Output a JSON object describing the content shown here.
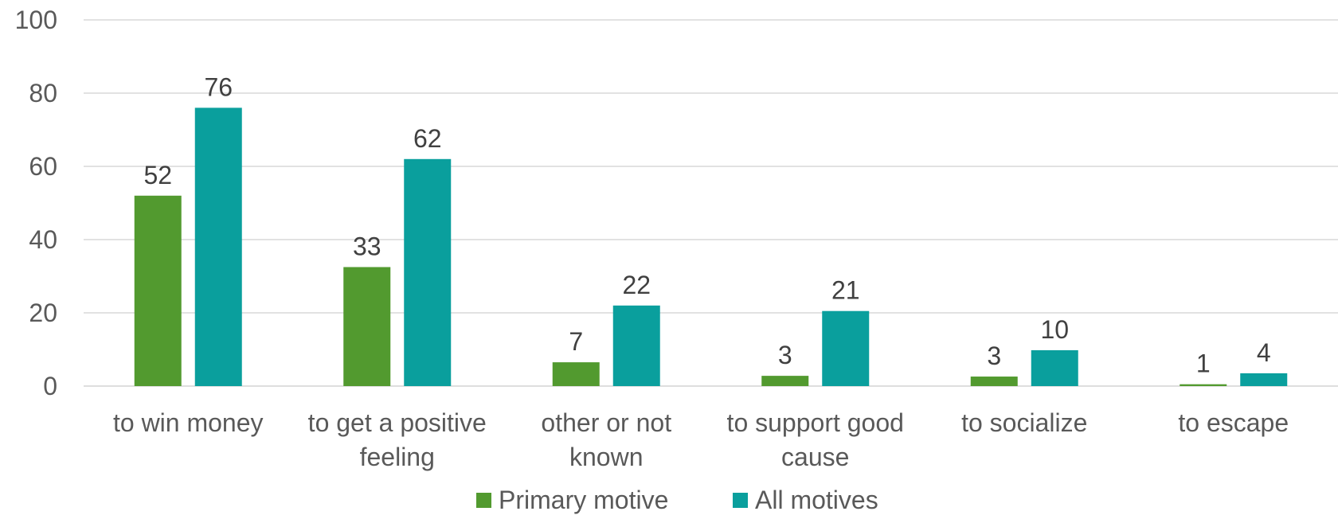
{
  "chart_data": {
    "type": "bar",
    "categories": [
      [
        "to win money"
      ],
      [
        "to get a positive",
        "feeling"
      ],
      [
        "other or not",
        "known"
      ],
      [
        "to support good",
        "cause"
      ],
      [
        "to socialize"
      ],
      [
        "to escape"
      ]
    ],
    "series": [
      {
        "name": "Primary motive",
        "color": "#529a2f",
        "values": [
          52,
          32.5,
          6.5,
          2.8,
          2.6,
          0.5
        ],
        "labels": [
          "52",
          "33",
          "7",
          "3",
          "3",
          "1"
        ]
      },
      {
        "name": "All motives",
        "color": "#0a9f9d",
        "values": [
          76,
          62,
          22,
          20.5,
          9.8,
          3.5
        ],
        "labels": [
          "76",
          "62",
          "22",
          "21",
          "10",
          "4"
        ]
      }
    ],
    "ylim": [
      0,
      100
    ],
    "yticks": [
      0,
      20,
      40,
      60,
      80,
      100
    ],
    "grid": true,
    "legend_position": "bottom",
    "gridline_color": "#d9d9d9"
  }
}
